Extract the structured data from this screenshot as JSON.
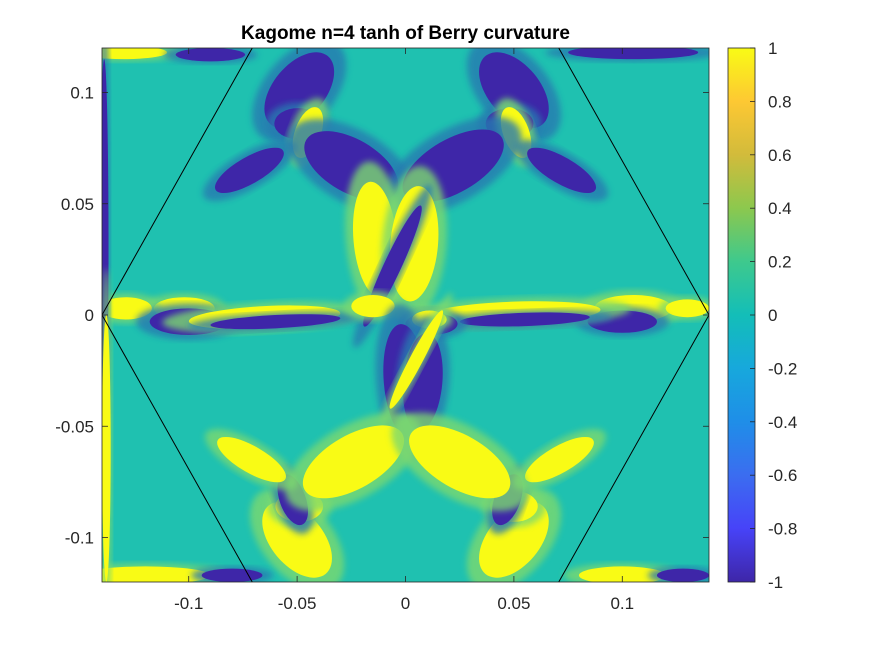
{
  "chart_data": {
    "type": "heatmap",
    "title": "Kagome n=4 tanh of Berry curvature",
    "xlabel": "",
    "ylabel": "",
    "xlim": [
      -0.14,
      0.14
    ],
    "ylim": [
      -0.12,
      0.12
    ],
    "x_ticks": [
      -0.1,
      -0.05,
      0,
      0.05,
      0.1
    ],
    "x_tick_labels": [
      "-0.1",
      "-0.05",
      "0",
      "0.05",
      "0.1"
    ],
    "y_ticks": [
      -0.1,
      -0.05,
      0,
      0.05,
      0.1
    ],
    "y_tick_labels": [
      "-0.1",
      "-0.05",
      "0",
      "0.05",
      "0.1"
    ],
    "colorbar": {
      "range": [
        -1,
        1
      ],
      "ticks": [
        -1,
        -0.8,
        -0.6,
        -0.4,
        -0.2,
        0,
        0.2,
        0.4,
        0.6,
        0.8,
        1
      ],
      "tick_labels": [
        "-1",
        "-0.8",
        "-0.6",
        "-0.4",
        "-0.2",
        "0",
        "0.2",
        "0.4",
        "0.6",
        "0.8",
        "1"
      ],
      "colormap": "parula",
      "low_color": "#3e26a8",
      "mid_color": "#13beb8",
      "high_color": "#f9fb15"
    },
    "background_value": 0.05,
    "hexagon_vertices": [
      [
        0.14,
        0
      ],
      [
        0.07,
        0.1212
      ],
      [
        -0.07,
        0.1212
      ],
      [
        -0.14,
        0
      ],
      [
        -0.07,
        -0.1212
      ],
      [
        0.07,
        -0.1212
      ]
    ],
    "hexagon_color": "#000000",
    "features": [
      {
        "shape": "lobe",
        "center": [
          -0.049,
          0.101
        ],
        "radii": [
          0.012,
          0.02
        ],
        "angle_deg": -40,
        "value": -1
      },
      {
        "shape": "lobe",
        "center": [
          -0.0495,
          0.086
        ],
        "radii": [
          0.011,
          0.007
        ],
        "angle_deg": 0,
        "value": -1
      },
      {
        "shape": "lobe",
        "center": [
          -0.045,
          0.082
        ],
        "radii": [
          0.006,
          0.012
        ],
        "angle_deg": -20,
        "value": 1
      },
      {
        "shape": "lobe",
        "center": [
          -0.072,
          0.065
        ],
        "radii": [
          0.018,
          0.006
        ],
        "angle_deg": 30,
        "value": -1
      },
      {
        "shape": "lobe",
        "center": [
          -0.025,
          0.067
        ],
        "radii": [
          0.024,
          0.012
        ],
        "angle_deg": -30,
        "value": -1
      },
      {
        "shape": "lobe",
        "center": [
          0.05,
          0.101
        ],
        "radii": [
          0.012,
          0.02
        ],
        "angle_deg": 40,
        "value": -1
      },
      {
        "shape": "lobe",
        "center": [
          0.048,
          0.086
        ],
        "radii": [
          0.011,
          0.007
        ],
        "angle_deg": 0,
        "value": -1
      },
      {
        "shape": "lobe",
        "center": [
          0.051,
          0.082
        ],
        "radii": [
          0.006,
          0.012
        ],
        "angle_deg": 20,
        "value": 1
      },
      {
        "shape": "lobe",
        "center": [
          0.072,
          0.065
        ],
        "radii": [
          0.018,
          0.006
        ],
        "angle_deg": -30,
        "value": -1
      },
      {
        "shape": "lobe",
        "center": [
          0.022,
          0.067
        ],
        "radii": [
          0.026,
          0.012
        ],
        "angle_deg": 30,
        "value": -1
      },
      {
        "shape": "lobe",
        "center": [
          -0.014,
          0.034
        ],
        "radii": [
          0.01,
          0.026
        ],
        "angle_deg": 5,
        "value": 1
      },
      {
        "shape": "lobe",
        "center": [
          0.004,
          0.032
        ],
        "radii": [
          0.011,
          0.026
        ],
        "angle_deg": -5,
        "value": 1
      },
      {
        "shape": "lobe",
        "center": [
          -0.006,
          0.022
        ],
        "radii": [
          0.004,
          0.03
        ],
        "angle_deg": -25,
        "value": -1
      },
      {
        "shape": "lobe",
        "center": [
          -0.102,
          0.003
        ],
        "radii": [
          0.014,
          0.005
        ],
        "angle_deg": 0,
        "value": 1
      },
      {
        "shape": "lobe",
        "center": [
          -0.129,
          0.003
        ],
        "radii": [
          0.012,
          0.005
        ],
        "angle_deg": 0,
        "value": 1
      },
      {
        "shape": "lobe",
        "center": [
          -0.1,
          -0.003
        ],
        "radii": [
          0.018,
          0.006
        ],
        "angle_deg": 0,
        "value": -1
      },
      {
        "shape": "lobe",
        "center": [
          -0.065,
          -0.001
        ],
        "radii": [
          0.035,
          0.005
        ],
        "angle_deg": 3,
        "value": 1
      },
      {
        "shape": "lobe",
        "center": [
          -0.06,
          -0.003
        ],
        "radii": [
          0.03,
          0.003
        ],
        "angle_deg": 3,
        "value": -1
      },
      {
        "shape": "lobe",
        "center": [
          -0.015,
          0.004
        ],
        "radii": [
          0.01,
          0.005
        ],
        "angle_deg": 0,
        "value": 1
      },
      {
        "shape": "lobe",
        "center": [
          0.105,
          0.003
        ],
        "radii": [
          0.018,
          0.006
        ],
        "angle_deg": 0,
        "value": 1
      },
      {
        "shape": "lobe",
        "center": [
          0.13,
          0.003
        ],
        "radii": [
          0.01,
          0.004
        ],
        "angle_deg": 0,
        "value": 1
      },
      {
        "shape": "lobe",
        "center": [
          0.1,
          -0.003
        ],
        "radii": [
          0.016,
          0.005
        ],
        "angle_deg": 0,
        "value": -1
      },
      {
        "shape": "lobe",
        "center": [
          0.05,
          0.001
        ],
        "radii": [
          0.04,
          0.005
        ],
        "angle_deg": 2,
        "value": 1
      },
      {
        "shape": "lobe",
        "center": [
          0.055,
          -0.002
        ],
        "radii": [
          0.03,
          0.003
        ],
        "angle_deg": 2,
        "value": -1
      },
      {
        "shape": "lobe",
        "center": [
          0.012,
          -0.004
        ],
        "radii": [
          0.012,
          0.005
        ],
        "angle_deg": 0,
        "value": -1
      },
      {
        "shape": "lobe",
        "center": [
          0.011,
          -0.002
        ],
        "radii": [
          0.008,
          0.004
        ],
        "angle_deg": 0,
        "value": 1
      },
      {
        "shape": "lobe",
        "center": [
          0.0,
          -0.03
        ],
        "radii": [
          0.01,
          0.026
        ],
        "angle_deg": 5,
        "value": -1
      },
      {
        "shape": "lobe",
        "center": [
          0.008,
          -0.03
        ],
        "radii": [
          0.009,
          0.022
        ],
        "angle_deg": -5,
        "value": -1
      },
      {
        "shape": "lobe",
        "center": [
          0.005,
          -0.02
        ],
        "radii": [
          0.003,
          0.025
        ],
        "angle_deg": -28,
        "value": 1
      },
      {
        "shape": "lobe",
        "center": [
          -0.05,
          -0.101
        ],
        "radii": [
          0.012,
          0.02
        ],
        "angle_deg": 40,
        "value": 1
      },
      {
        "shape": "lobe",
        "center": [
          -0.049,
          -0.086
        ],
        "radii": [
          0.011,
          0.007
        ],
        "angle_deg": 0,
        "value": 1
      },
      {
        "shape": "lobe",
        "center": [
          -0.052,
          -0.083
        ],
        "radii": [
          0.006,
          0.012
        ],
        "angle_deg": 20,
        "value": -1
      },
      {
        "shape": "lobe",
        "center": [
          -0.071,
          -0.065
        ],
        "radii": [
          0.018,
          0.006
        ],
        "angle_deg": -30,
        "value": 1
      },
      {
        "shape": "lobe",
        "center": [
          -0.024,
          -0.066
        ],
        "radii": [
          0.026,
          0.012
        ],
        "angle_deg": 30,
        "value": 1
      },
      {
        "shape": "lobe",
        "center": [
          0.05,
          -0.101
        ],
        "radii": [
          0.012,
          0.02
        ],
        "angle_deg": -40,
        "value": 1
      },
      {
        "shape": "lobe",
        "center": [
          0.05,
          -0.086
        ],
        "radii": [
          0.011,
          0.007
        ],
        "angle_deg": 0,
        "value": 1
      },
      {
        "shape": "lobe",
        "center": [
          0.047,
          -0.083
        ],
        "radii": [
          0.006,
          0.012
        ],
        "angle_deg": -20,
        "value": -1
      },
      {
        "shape": "lobe",
        "center": [
          0.071,
          -0.065
        ],
        "radii": [
          0.018,
          0.006
        ],
        "angle_deg": 30,
        "value": 1
      },
      {
        "shape": "lobe",
        "center": [
          0.025,
          -0.066
        ],
        "radii": [
          0.026,
          0.012
        ],
        "angle_deg": -30,
        "value": 1
      },
      {
        "shape": "lobe",
        "center": [
          -0.13,
          0.118
        ],
        "radii": [
          0.02,
          0.003
        ],
        "angle_deg": 0,
        "value": 1
      },
      {
        "shape": "lobe",
        "center": [
          -0.09,
          0.117
        ],
        "radii": [
          0.016,
          0.003
        ],
        "angle_deg": 0,
        "value": -1
      },
      {
        "shape": "lobe",
        "center": [
          0.105,
          0.118
        ],
        "radii": [
          0.03,
          0.003
        ],
        "angle_deg": 0,
        "value": -1
      },
      {
        "shape": "lobe",
        "center": [
          -0.12,
          -0.117
        ],
        "radii": [
          0.03,
          0.004
        ],
        "angle_deg": 0,
        "value": 1
      },
      {
        "shape": "lobe",
        "center": [
          -0.08,
          -0.117
        ],
        "radii": [
          0.014,
          0.003
        ],
        "angle_deg": 0,
        "value": -1
      },
      {
        "shape": "lobe",
        "center": [
          0.1,
          -0.117
        ],
        "radii": [
          0.02,
          0.004
        ],
        "angle_deg": 0,
        "value": 1
      },
      {
        "shape": "lobe",
        "center": [
          0.128,
          -0.117
        ],
        "radii": [
          0.012,
          0.003
        ],
        "angle_deg": 0,
        "value": -1
      },
      {
        "shape": "lobe",
        "center": [
          -0.139,
          0.03
        ],
        "radii": [
          0.002,
          0.085
        ],
        "angle_deg": 0,
        "value": -1
      },
      {
        "shape": "lobe",
        "center": [
          -0.138,
          -0.06
        ],
        "radii": [
          0.002,
          0.06
        ],
        "angle_deg": 0,
        "value": 1
      }
    ]
  }
}
